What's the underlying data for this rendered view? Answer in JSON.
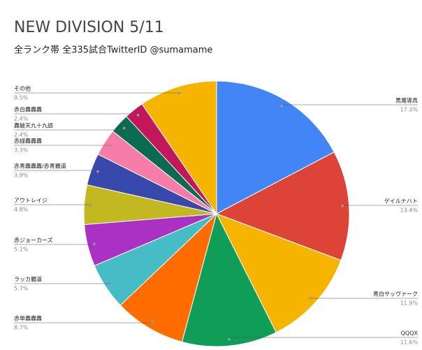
{
  "chart_data": {
    "type": "pie",
    "title": "NEW DIVISION 5/11",
    "subtitle": "全ランク帯 全335試合TwitterID @sumamame",
    "categories": [
      "黒魔導具",
      "ゲイルナハト",
      "青白サッヴァーク",
      "QQQX",
      "赤単轟轟轟",
      "ラッカ覇道",
      "赤ジョーカーズ",
      "アウトレイジ",
      "赤青轟轟轟/赤青覇道",
      "赤緑轟轟轟",
      "轟破天九十九語",
      "赤白轟轟轟",
      "その他"
    ],
    "values": [
      17.3,
      13.4,
      11.9,
      11.6,
      8.7,
      5.7,
      5.1,
      4.8,
      3.9,
      3.3,
      2.4,
      2.4,
      9.5
    ],
    "value_labels": [
      "17.3%",
      "13.4%",
      "11.9%",
      "11.6%",
      "8.7%",
      "5.7%",
      "5.1%",
      "4.8%",
      "3.9%",
      "3.3%",
      "2.4%",
      "2.4%",
      "9.5%"
    ],
    "colors": [
      "#4285f4",
      "#db4437",
      "#f4b400",
      "#0f9d58",
      "#ff6d00",
      "#46bdc6",
      "#ab30c4",
      "#c2b820",
      "#3949ab",
      "#f77ca8",
      "#0b6b4e",
      "#c2185b",
      "#f4b400"
    ]
  }
}
